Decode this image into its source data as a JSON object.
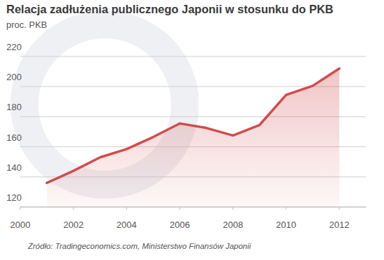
{
  "chart_data": {
    "type": "line",
    "title": "Relacja zadłużenia publicznego Japonii w stosunku do PKB",
    "subtitle": "proc. PKB",
    "source": "Źródło: Tradingeconomics.com, Ministerstwo Finansów Japonii",
    "x": [
      2001,
      2002,
      2003,
      2004,
      2005,
      2006,
      2007,
      2008,
      2009,
      2010,
      2011,
      2012
    ],
    "values": [
      136,
      144,
      153,
      158.5,
      166.5,
      175.5,
      172.5,
      167.5,
      174.5,
      194.5,
      200.5,
      212
    ],
    "color": "#d24b4c",
    "xlim": [
      2000,
      2013
    ],
    "xticks": [
      2000,
      2002,
      2004,
      2006,
      2008,
      2010,
      2012
    ],
    "ylim": [
      120,
      220
    ],
    "yticks": [
      120,
      140,
      160,
      180,
      200,
      220
    ],
    "grid": true
  }
}
